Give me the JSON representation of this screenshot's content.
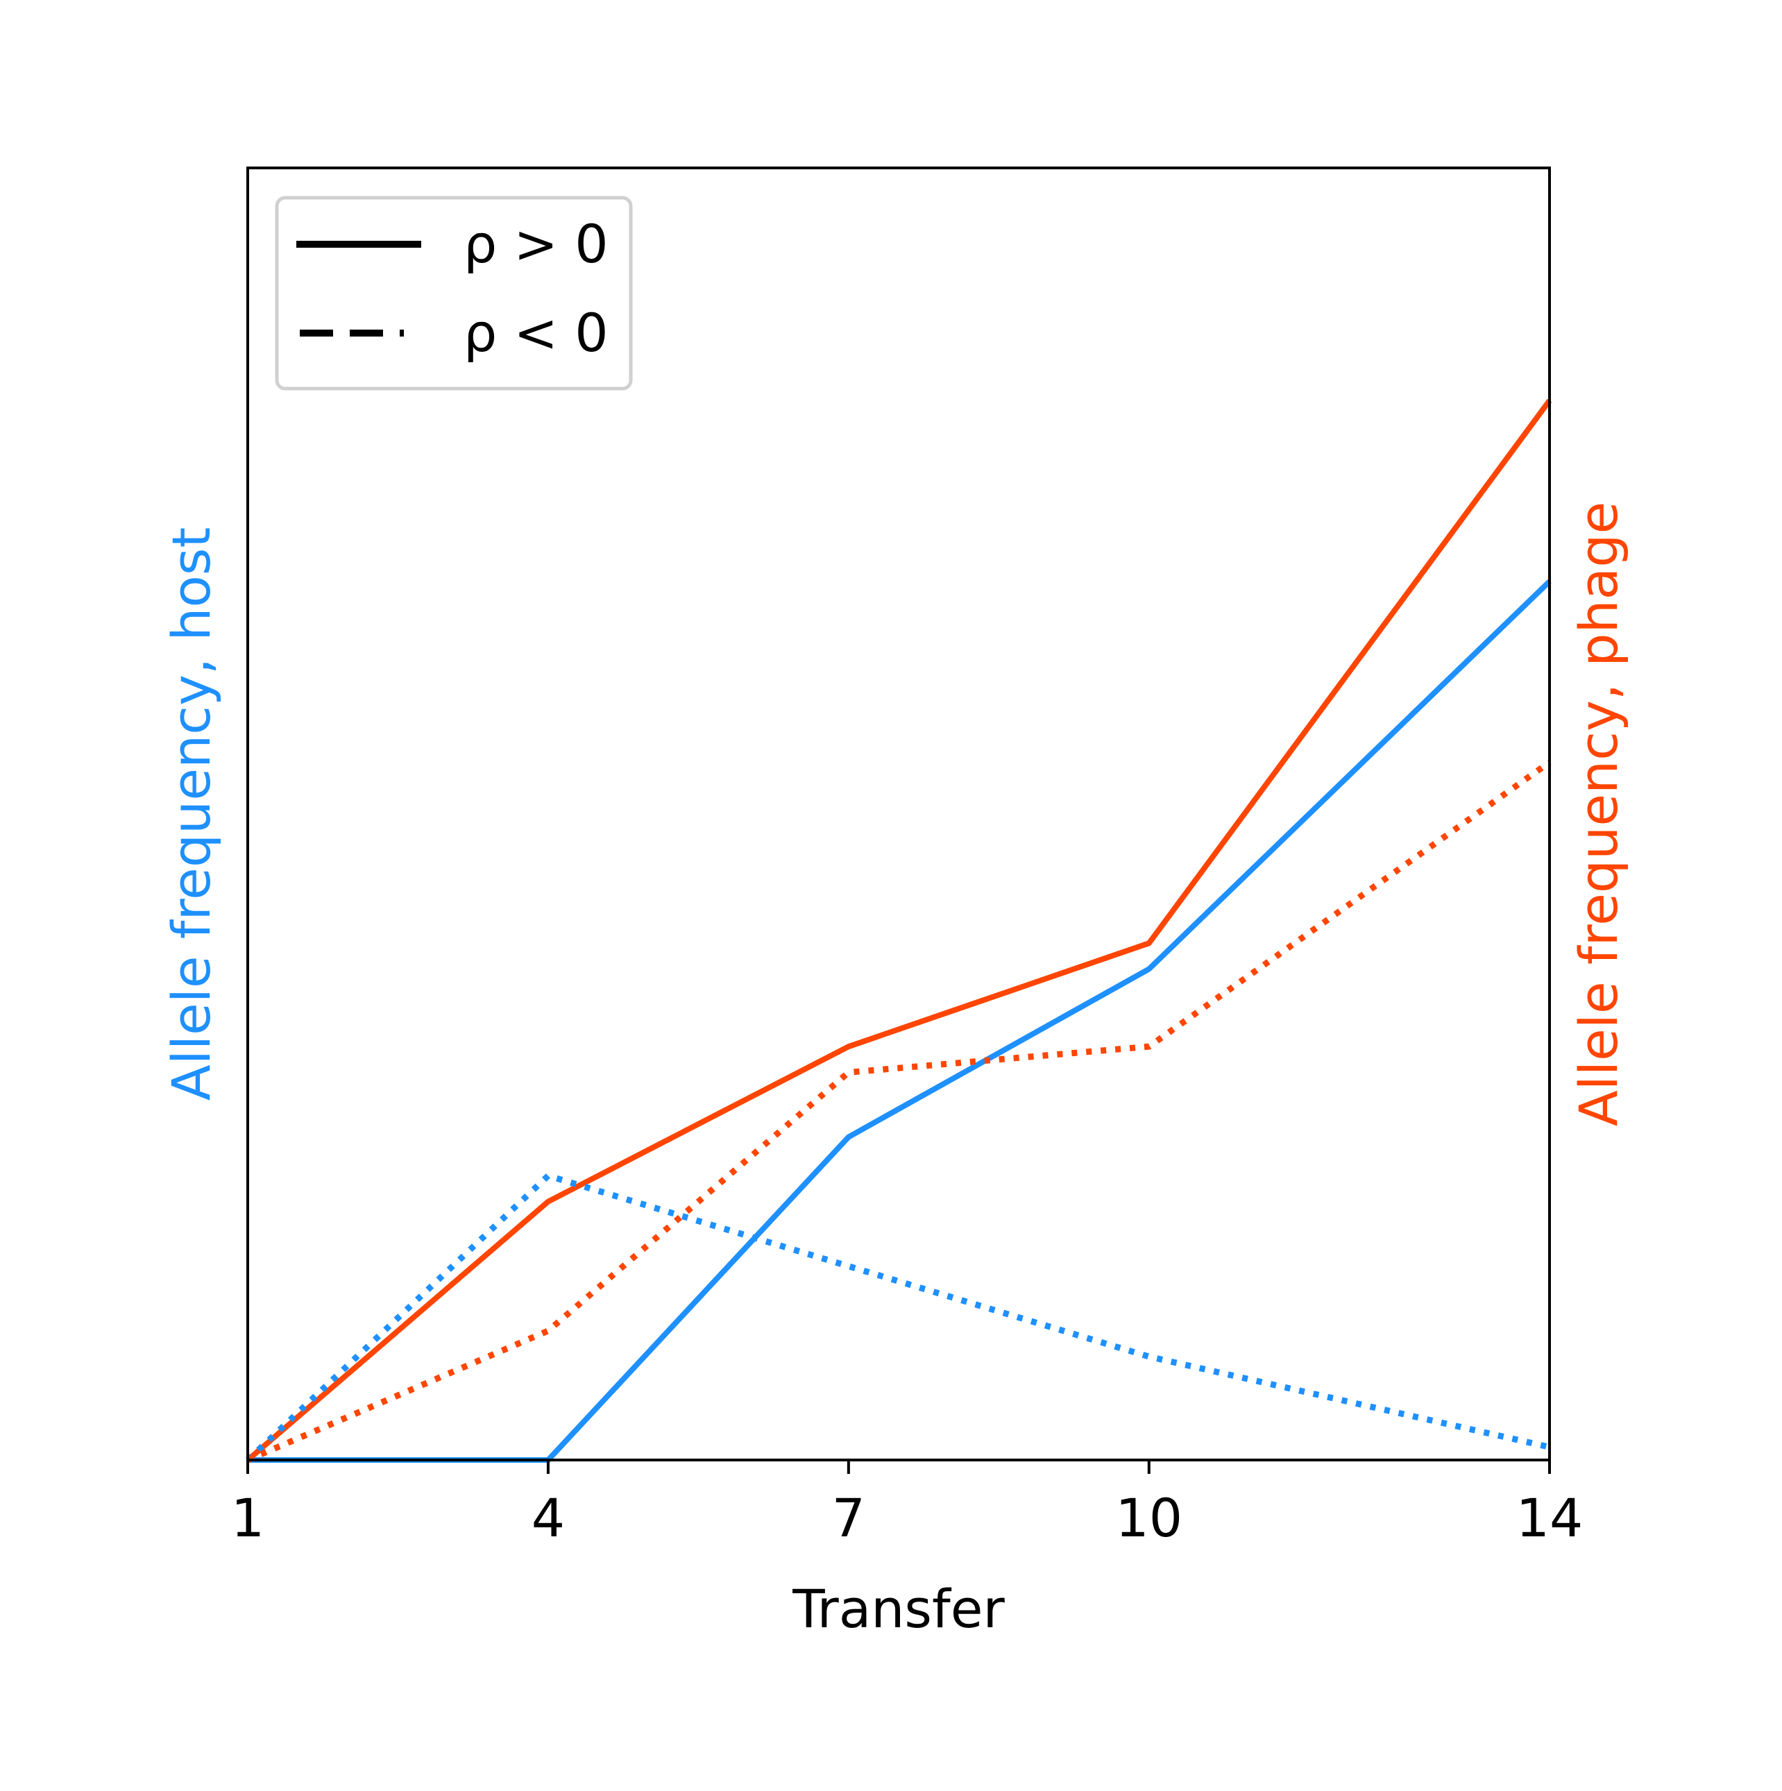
{
  "chart_data": {
    "type": "line",
    "xlabel": "Transfer",
    "ylabel_left": "Allele frequency, host",
    "ylabel_right": "Allele frequency, phage",
    "x_ticks": [
      "1",
      "4",
      "7",
      "10",
      "14"
    ],
    "xlim": [
      1,
      14
    ],
    "ylim": [
      0,
      1
    ],
    "y_ticks_shown": false,
    "grid": false,
    "legend": {
      "placement": "top-left",
      "entries": [
        {
          "label": "ρ > 0",
          "style": "solid"
        },
        {
          "label": "ρ < 0",
          "style": "dashed"
        }
      ]
    },
    "colors": {
      "host": "#1e90ff",
      "phage": "#ff4500"
    },
    "series": [
      {
        "group": "host",
        "style": "solid",
        "x": [
          1,
          4,
          7,
          10,
          14
        ],
        "y": [
          0.0,
          0.0,
          0.25,
          0.38,
          0.68
        ]
      },
      {
        "group": "phage",
        "style": "solid",
        "x": [
          1,
          4,
          7,
          10,
          14
        ],
        "y": [
          0.0,
          0.2,
          0.32,
          0.4,
          0.82
        ]
      },
      {
        "group": "host",
        "style": "dotted",
        "x": [
          1,
          4,
          7,
          10,
          14
        ],
        "y": [
          0.0,
          0.22,
          0.15,
          0.08,
          0.01
        ]
      },
      {
        "group": "phage",
        "style": "dotted",
        "x": [
          1,
          4,
          7,
          10,
          14
        ],
        "y": [
          0.0,
          0.1,
          0.3,
          0.32,
          0.54
        ]
      }
    ]
  }
}
